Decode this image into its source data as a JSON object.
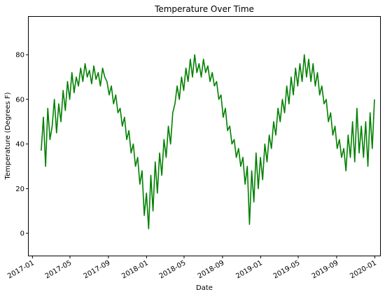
{
  "chart_data": {
    "type": "line",
    "title": "Temperature Over Time",
    "xlabel": "Date",
    "ylabel": "Temperature (Degrees F)",
    "x_start": "2017-01-29",
    "x_end": "2019-12-31",
    "xlim": [
      "2016-12-20",
      "2020-01-18"
    ],
    "ylim": [
      -10,
      97
    ],
    "x_ticks": [
      "2017-01",
      "2017-05",
      "2017-09",
      "2018-01",
      "2018-05",
      "2018-09",
      "2019-01",
      "2019-05",
      "2019-09",
      "2020-01"
    ],
    "y_ticks": [
      "0",
      "20",
      "40",
      "60",
      "80"
    ],
    "grid": false,
    "legend": "none",
    "series": [
      {
        "color": "#008000",
        "sampling": "approx. weekly",
        "values": [
          37,
          52,
          30,
          56,
          42,
          48,
          60,
          45,
          58,
          50,
          64,
          55,
          68,
          60,
          72,
          63,
          70,
          66,
          74,
          68,
          76,
          70,
          73,
          67,
          75,
          69,
          72,
          66,
          74,
          70,
          68,
          62,
          66,
          58,
          62,
          54,
          56,
          48,
          52,
          42,
          46,
          36,
          40,
          30,
          34,
          22,
          28,
          8,
          18,
          2,
          26,
          10,
          32,
          18,
          36,
          26,
          42,
          34,
          48,
          40,
          54,
          58,
          66,
          60,
          70,
          64,
          74,
          68,
          78,
          70,
          80,
          72,
          76,
          70,
          78,
          72,
          75,
          68,
          72,
          66,
          68,
          60,
          62,
          52,
          56,
          46,
          48,
          40,
          42,
          34,
          38,
          30,
          34,
          22,
          30,
          4,
          28,
          14,
          36,
          20,
          34,
          24,
          40,
          32,
          44,
          38,
          50,
          44,
          56,
          50,
          60,
          54,
          66,
          58,
          70,
          62,
          74,
          66,
          76,
          68,
          80,
          70,
          78,
          68,
          76,
          66,
          72,
          62,
          66,
          58,
          60,
          50,
          54,
          44,
          48,
          38,
          42,
          34,
          38,
          28,
          44,
          34,
          50,
          32,
          56,
          36,
          48,
          34,
          50,
          30,
          54,
          38,
          60
        ]
      }
    ]
  }
}
